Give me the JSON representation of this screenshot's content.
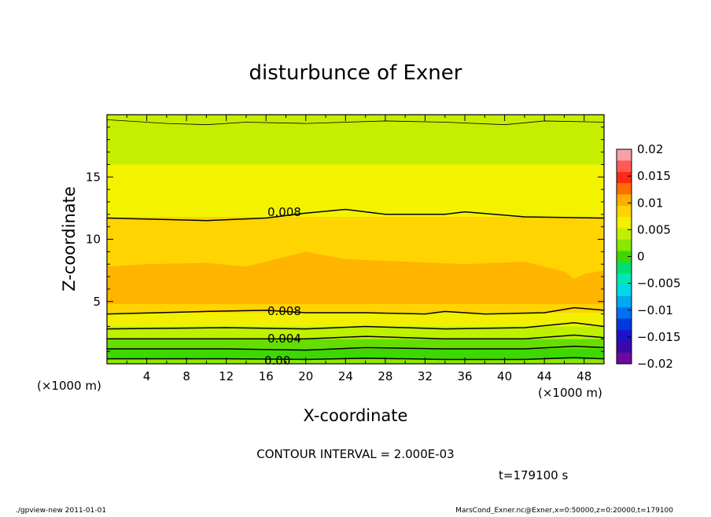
{
  "chart_data": {
    "type": "heatmap",
    "title": "disturbunce of Exner",
    "xlabel": "X-coordinate",
    "ylabel": "Z-coordinate",
    "x_unit": "(×1000 m)",
    "z_unit": "(×1000 m)",
    "xlim": [
      0,
      50
    ],
    "ylim": [
      0,
      20
    ],
    "x_ticks": [
      "4",
      "8",
      "12",
      "16",
      "20",
      "24",
      "28",
      "32",
      "36",
      "40",
      "44",
      "48"
    ],
    "x_tick_values": [
      4,
      8,
      12,
      16,
      20,
      24,
      28,
      32,
      36,
      40,
      44,
      48
    ],
    "y_ticks": [
      "5",
      "10",
      "15"
    ],
    "y_tick_values": [
      5,
      10,
      15
    ],
    "colorbar": {
      "ticks": [
        "0.02",
        "0.015",
        "0.01",
        "0.005",
        "0",
        "−0.005",
        "−0.01",
        "−0.015",
        "−0.02"
      ],
      "tick_values": [
        0.02,
        0.015,
        0.01,
        0.005,
        0,
        -0.005,
        -0.01,
        -0.015,
        -0.02
      ],
      "colors": [
        "#f7a0a8",
        "#ff5a5a",
        "#ff2a16",
        "#ff6e00",
        "#ffae00",
        "#ffd400",
        "#f0f000",
        "#bff000",
        "#8ce800",
        "#3cd800",
        "#00e070",
        "#00e8b4",
        "#00d8e8",
        "#00a8f0",
        "#0070f0",
        "#0038e0",
        "#1e12c8",
        "#3a0aa8",
        "#6a0aa0"
      ]
    },
    "contour_interval_text": "CONTOUR INTERVAL = 2.000E-03",
    "time_text": "t=179100 s",
    "contour_labels": [
      "0.008",
      "0.008",
      "0.004",
      "0.00"
    ],
    "contour_levels": [
      0.0,
      0.002,
      0.004,
      0.006,
      0.008
    ],
    "bands": [
      {
        "z_bottom": 0.0,
        "z_top": 0.35,
        "color": "#8ce800"
      },
      {
        "z_bottom": 0.35,
        "z_top": 1.2,
        "color": "#3cd800"
      },
      {
        "z_bottom": 1.2,
        "z_top": 2.0,
        "color": "#66dd00"
      },
      {
        "z_bottom": 2.0,
        "z_top": 3.0,
        "color": "#bff000"
      },
      {
        "z_bottom": 3.0,
        "z_top": 4.1,
        "color": "#f0f000"
      },
      {
        "z_bottom": 4.1,
        "z_top": 11.8,
        "color": "#ffd400"
      },
      {
        "z_bottom": 11.8,
        "z_top": 16.0,
        "color": "#f3f300"
      },
      {
        "z_bottom": 16.0,
        "z_top": 20.0,
        "color": "#c6ee00"
      }
    ],
    "core": {
      "z_bottom": 4.8,
      "z_top": 8.2,
      "color": "#ffb400"
    },
    "contours": [
      {
        "level": 0.008,
        "x": [
          0,
          10,
          16,
          20,
          24,
          28,
          34,
          36,
          42,
          50
        ],
        "z": [
          11.7,
          11.5,
          11.7,
          12.1,
          12.4,
          12.0,
          12.0,
          12.2,
          11.8,
          11.7
        ]
      },
      {
        "level": 0.008,
        "x": [
          0,
          10,
          16,
          20,
          26,
          32,
          34,
          38,
          44,
          47,
          50
        ],
        "z": [
          4.0,
          4.2,
          4.3,
          4.1,
          4.1,
          4.0,
          4.2,
          4.0,
          4.1,
          4.5,
          4.3
        ]
      },
      {
        "level": 0.006,
        "x": [
          0,
          12,
          20,
          26,
          34,
          42,
          47,
          50
        ],
        "z": [
          2.8,
          2.9,
          2.8,
          3.0,
          2.8,
          2.9,
          3.3,
          3.0
        ]
      },
      {
        "level": 0.004,
        "x": [
          0,
          12,
          20,
          26,
          34,
          42,
          47,
          50
        ],
        "z": [
          2.0,
          2.0,
          2.0,
          2.2,
          2.0,
          2.0,
          2.3,
          2.1
        ]
      },
      {
        "level": 0.002,
        "x": [
          0,
          12,
          20,
          26,
          34,
          42,
          47,
          50
        ],
        "z": [
          1.2,
          1.2,
          1.1,
          1.3,
          1.2,
          1.2,
          1.4,
          1.3
        ]
      },
      {
        "level": 0.0,
        "x": [
          0,
          12,
          20,
          26,
          34,
          42,
          47,
          50
        ],
        "z": [
          0.4,
          0.4,
          0.35,
          0.45,
          0.35,
          0.35,
          0.5,
          0.4
        ]
      }
    ]
  },
  "footer": {
    "left": "./gpview-new   2011-01-01",
    "right": "MarsCond_Exner.nc@Exner,x=0:50000,z=0:20000,t=179100"
  }
}
